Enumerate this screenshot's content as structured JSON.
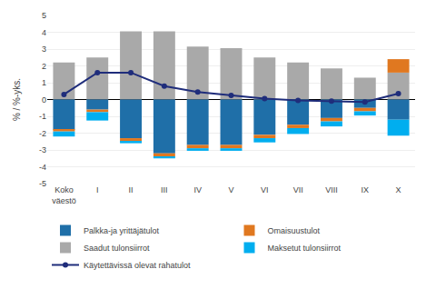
{
  "chart_data": {
    "type": "bar",
    "stacked": true,
    "categories": [
      "Koko\nväestö",
      "I",
      "II",
      "III",
      "IV",
      "V",
      "VI",
      "VII",
      "VIII",
      "IX",
      "X"
    ],
    "series": [
      {
        "name": "Palkka-ja yrittäjätulot",
        "type": "bar",
        "color": "#1F6FA8",
        "values": [
          -1.8,
          -0.6,
          -2.3,
          -3.2,
          -2.7,
          -2.7,
          -2.1,
          -1.5,
          -1.1,
          -0.5,
          -1.2
        ]
      },
      {
        "name": "Omaisuustulot",
        "type": "bar",
        "color": "#E07820",
        "values": [
          -0.1,
          -0.15,
          -0.2,
          -0.2,
          -0.2,
          -0.2,
          -0.2,
          -0.2,
          -0.2,
          -0.2,
          0.8
        ]
      },
      {
        "name": "Saadut tulonsiirrot",
        "type": "bar",
        "color": "#A9A9A9",
        "values": [
          2.2,
          2.5,
          4.05,
          4.05,
          3.15,
          3.05,
          2.5,
          2.2,
          1.85,
          1.3,
          1.6
        ]
      },
      {
        "name": "Maksetut tulonsiirrot",
        "type": "bar",
        "color": "#00AEEF",
        "values": [
          -0.3,
          -0.5,
          -0.1,
          -0.1,
          -0.15,
          -0.15,
          -0.25,
          -0.35,
          -0.3,
          -0.25,
          -0.95
        ]
      },
      {
        "name": "Käytettävissä olevat rahatulot",
        "type": "line",
        "color": "#1F2D7B",
        "marker": "circle",
        "values": [
          0.3,
          1.6,
          1.6,
          0.8,
          0.45,
          0.25,
          0.05,
          -0.05,
          -0.1,
          -0.15,
          0.35
        ]
      }
    ],
    "ylabel": "% / %-yks.",
    "ylim": [
      -5,
      5
    ],
    "yticks": [
      -5,
      -4,
      -3,
      -2,
      -1,
      0,
      1,
      2,
      3,
      4,
      5
    ],
    "grid": true,
    "legend": "bottom"
  }
}
